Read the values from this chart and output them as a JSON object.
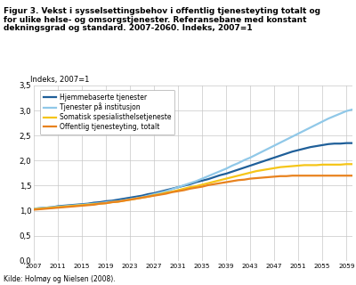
{
  "title_lines": [
    "Figur 3. Vekst i sysselsettingsbehov i offentlig tjenesteyting totalt og",
    "for ulike helse- og omsorgstjenester. Referansebane med konstant",
    "dekningsgrad og standard. 2007-2060. Indeks, 2007=1"
  ],
  "ylabel": "Indeks, 2007=1",
  "source_note": "Kilde: Holmøy og Nielsen (2008).",
  "years": [
    2007,
    2008,
    2009,
    2010,
    2011,
    2012,
    2013,
    2014,
    2015,
    2016,
    2017,
    2018,
    2019,
    2020,
    2021,
    2022,
    2023,
    2024,
    2025,
    2026,
    2027,
    2028,
    2029,
    2030,
    2031,
    2032,
    2033,
    2034,
    2035,
    2036,
    2037,
    2038,
    2039,
    2040,
    2041,
    2042,
    2043,
    2044,
    2045,
    2046,
    2047,
    2048,
    2049,
    2050,
    2051,
    2052,
    2053,
    2054,
    2055,
    2056,
    2057,
    2058,
    2059,
    2060
  ],
  "series": [
    {
      "label": "Hjemmebaserte tjenester",
      "color": "#1f5f99",
      "linewidth": 1.6,
      "values": [
        1.04,
        1.05,
        1.06,
        1.07,
        1.09,
        1.1,
        1.11,
        1.12,
        1.13,
        1.14,
        1.16,
        1.17,
        1.19,
        1.2,
        1.22,
        1.24,
        1.26,
        1.28,
        1.3,
        1.33,
        1.35,
        1.38,
        1.41,
        1.44,
        1.47,
        1.5,
        1.53,
        1.57,
        1.6,
        1.63,
        1.67,
        1.71,
        1.74,
        1.78,
        1.82,
        1.86,
        1.9,
        1.94,
        1.98,
        2.02,
        2.06,
        2.1,
        2.14,
        2.18,
        2.21,
        2.24,
        2.27,
        2.29,
        2.31,
        2.33,
        2.34,
        2.34,
        2.35,
        2.35
      ]
    },
    {
      "label": "Tjenester på institusjon",
      "color": "#90c8e8",
      "linewidth": 1.6,
      "values": [
        1.04,
        1.05,
        1.06,
        1.07,
        1.08,
        1.09,
        1.1,
        1.11,
        1.12,
        1.13,
        1.14,
        1.15,
        1.17,
        1.18,
        1.19,
        1.21,
        1.23,
        1.25,
        1.27,
        1.3,
        1.33,
        1.36,
        1.39,
        1.43,
        1.47,
        1.51,
        1.55,
        1.59,
        1.64,
        1.69,
        1.74,
        1.79,
        1.84,
        1.9,
        1.95,
        2.01,
        2.06,
        2.12,
        2.18,
        2.24,
        2.3,
        2.36,
        2.42,
        2.48,
        2.54,
        2.6,
        2.66,
        2.72,
        2.78,
        2.84,
        2.89,
        2.94,
        2.99,
        3.02
      ]
    },
    {
      "label": "Somatisk spesialisthelsetjeneste",
      "color": "#f5c518",
      "linewidth": 1.6,
      "values": [
        1.03,
        1.04,
        1.05,
        1.06,
        1.07,
        1.08,
        1.09,
        1.1,
        1.11,
        1.12,
        1.13,
        1.14,
        1.15,
        1.17,
        1.18,
        1.2,
        1.22,
        1.24,
        1.26,
        1.28,
        1.31,
        1.33,
        1.36,
        1.38,
        1.41,
        1.44,
        1.47,
        1.49,
        1.52,
        1.55,
        1.58,
        1.61,
        1.64,
        1.67,
        1.7,
        1.73,
        1.76,
        1.79,
        1.81,
        1.83,
        1.85,
        1.87,
        1.88,
        1.89,
        1.9,
        1.91,
        1.91,
        1.91,
        1.92,
        1.92,
        1.92,
        1.92,
        1.93,
        1.93
      ]
    },
    {
      "label": "Offentlig tjenesteyting, totalt",
      "color": "#e8821e",
      "linewidth": 1.6,
      "values": [
        1.02,
        1.03,
        1.04,
        1.05,
        1.06,
        1.07,
        1.08,
        1.09,
        1.1,
        1.11,
        1.12,
        1.14,
        1.15,
        1.17,
        1.18,
        1.2,
        1.22,
        1.24,
        1.26,
        1.28,
        1.3,
        1.32,
        1.34,
        1.37,
        1.39,
        1.41,
        1.44,
        1.46,
        1.48,
        1.51,
        1.53,
        1.55,
        1.57,
        1.59,
        1.61,
        1.62,
        1.64,
        1.65,
        1.66,
        1.67,
        1.68,
        1.69,
        1.69,
        1.7,
        1.7,
        1.7,
        1.7,
        1.7,
        1.7,
        1.7,
        1.7,
        1.7,
        1.7,
        1.7
      ]
    }
  ],
  "xticks": [
    2007,
    2011,
    2015,
    2019,
    2023,
    2027,
    2031,
    2035,
    2039,
    2043,
    2047,
    2051,
    2055,
    2059
  ],
  "yticks": [
    0.0,
    0.5,
    1.0,
    1.5,
    2.0,
    2.5,
    3.0,
    3.5
  ],
  "ylim": [
    0.0,
    3.5
  ],
  "xlim": [
    2007,
    2060
  ],
  "background_color": "#ffffff",
  "grid_color": "#c8c8c8"
}
